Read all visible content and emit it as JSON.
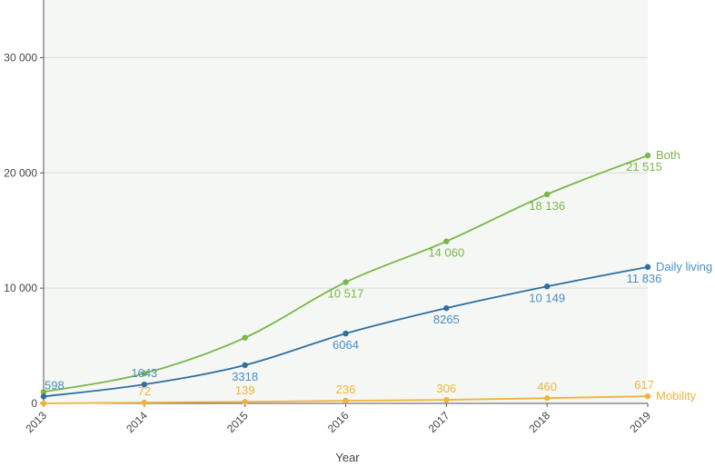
{
  "chart_data": {
    "type": "line",
    "title": "",
    "xlabel": "Year",
    "ylabel": "",
    "x": [
      "2013",
      "2014",
      "2015",
      "2016",
      "2017",
      "2018",
      "2019"
    ],
    "ylim": [
      0,
      35000
    ],
    "yticks": [
      0,
      10000,
      20000,
      30000
    ],
    "ytick_labels": [
      "0",
      "10 000",
      "20 000",
      "30 000"
    ],
    "grid": true,
    "legend": "end-of-line labels",
    "background_color": "#f4f7f4",
    "series": [
      {
        "name": "Both",
        "color": "#7ab648",
        "values": [
          1000,
          2600,
          5700,
          10517,
          14060,
          18136,
          21515
        ],
        "labels": [
          "",
          "",
          "",
          "10 517",
          "14 060",
          "18 136",
          "21 515"
        ]
      },
      {
        "name": "Daily living",
        "color": "#2f6f9f",
        "label_color": "#4a8fc2",
        "values": [
          598,
          1643,
          3318,
          6064,
          8265,
          10149,
          11836
        ],
        "labels": [
          "598",
          "1643",
          "3318",
          "6064",
          "8265",
          "10 149",
          "11 836"
        ]
      },
      {
        "name": "Mobility",
        "color": "#f0b43c",
        "values": [
          0,
          72,
          139,
          236,
          306,
          460,
          617
        ],
        "labels": [
          "",
          "72",
          "139",
          "236",
          "306",
          "460",
          "617"
        ]
      }
    ]
  }
}
